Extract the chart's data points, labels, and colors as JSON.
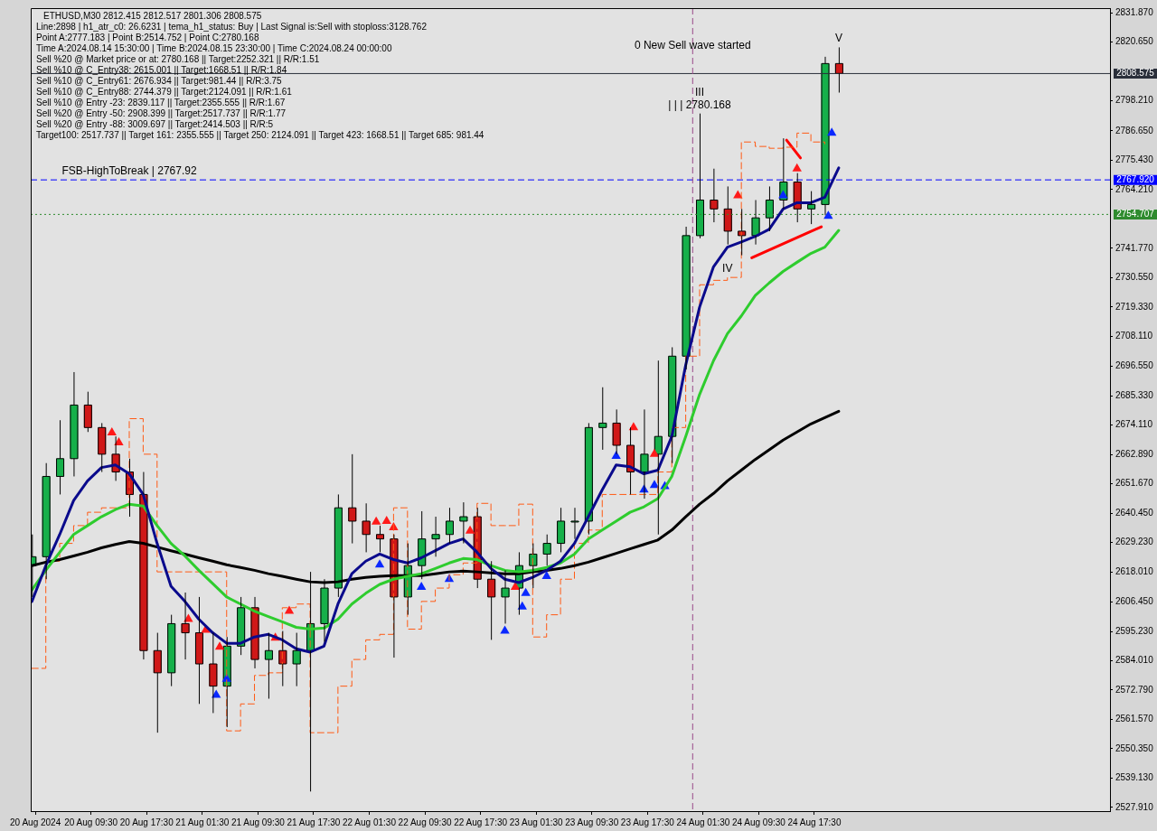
{
  "chart_data": {
    "type": "candlestick",
    "title": "ETHUSD,M30  2812.415 2812.517 2801.306 2808.575",
    "x": [
      "2024-08-20T01:00",
      "2024-08-20T03:00",
      "2024-08-20T05:00",
      "2024-08-20T07:00",
      "2024-08-20T09:00",
      "2024-08-20T11:00",
      "2024-08-20T13:00",
      "2024-08-20T15:00",
      "2024-08-20T17:00",
      "2024-08-20T19:00",
      "2024-08-20T21:00",
      "2024-08-20T23:00",
      "2024-08-21T01:00",
      "2024-08-21T03:00",
      "2024-08-21T05:00",
      "2024-08-21T07:00",
      "2024-08-21T09:00",
      "2024-08-21T11:00",
      "2024-08-21T13:00",
      "2024-08-21T15:00",
      "2024-08-21T17:00",
      "2024-08-21T19:00",
      "2024-08-21T21:00",
      "2024-08-21T23:00",
      "2024-08-22T01:00",
      "2024-08-22T03:00",
      "2024-08-22T05:00",
      "2024-08-22T07:00",
      "2024-08-22T09:00",
      "2024-08-22T11:00",
      "2024-08-22T13:00",
      "2024-08-22T15:00",
      "2024-08-22T17:00",
      "2024-08-22T19:00",
      "2024-08-22T21:00",
      "2024-08-22T23:00",
      "2024-08-23T01:00",
      "2024-08-23T03:00",
      "2024-08-23T05:00",
      "2024-08-23T07:00",
      "2024-08-23T09:00",
      "2024-08-23T11:00",
      "2024-08-23T13:00",
      "2024-08-23T15:00",
      "2024-08-23T17:00",
      "2024-08-23T19:00",
      "2024-08-23T21:00",
      "2024-08-23T23:00",
      "2024-08-24T01:00",
      "2024-08-24T03:00",
      "2024-08-24T05:00",
      "2024-08-24T07:00",
      "2024-08-24T09:00",
      "2024-08-24T11:00",
      "2024-08-24T13:00",
      "2024-08-24T15:00",
      "2024-08-24T17:00",
      "2024-08-24T19:00",
      "2024-08-24T21:00"
    ],
    "ohlc": [
      [
        2620.4,
        2632.3,
        2608.4,
        2623.8
      ],
      [
        2623.8,
        2659.6,
        2615.2,
        2654.5
      ],
      [
        2654.5,
        2676.0,
        2647.6,
        2661.3
      ],
      [
        2661.3,
        2694.4,
        2654.5,
        2681.8
      ],
      [
        2681.8,
        2686.9,
        2671.5,
        2673.2
      ],
      [
        2673.2,
        2674.9,
        2656.2,
        2663.0
      ],
      [
        2663.0,
        2669.8,
        2652.8,
        2656.2
      ],
      [
        2656.2,
        2661.3,
        2639.1,
        2647.6
      ],
      [
        2647.6,
        2656.2,
        2584.5,
        2587.9
      ],
      [
        2587.9,
        2594.7,
        2556.5,
        2579.4
      ],
      [
        2579.4,
        2601.6,
        2574.3,
        2598.2
      ],
      [
        2598.2,
        2610.1,
        2584.5,
        2594.7
      ],
      [
        2594.7,
        2608.4,
        2567.5,
        2582.8
      ],
      [
        2582.8,
        2594.7,
        2564.0,
        2574.3
      ],
      [
        2574.3,
        2593.1,
        2558.6,
        2589.6
      ],
      [
        2589.6,
        2608.4,
        2586.2,
        2604.3
      ],
      [
        2604.3,
        2608.4,
        2581.1,
        2584.5
      ],
      [
        2584.5,
        2594.7,
        2569.5,
        2587.9
      ],
      [
        2587.9,
        2595.4,
        2574.3,
        2582.8
      ],
      [
        2582.8,
        2594.7,
        2574.3,
        2587.9
      ],
      [
        2587.9,
        2618.0,
        2534.0,
        2598.2
      ],
      [
        2598.2,
        2615.2,
        2591.3,
        2611.8
      ],
      [
        2611.8,
        2647.6,
        2608.4,
        2642.5
      ],
      [
        2642.5,
        2663.0,
        2628.9,
        2637.4
      ],
      [
        2637.4,
        2644.2,
        2625.5,
        2632.3
      ],
      [
        2632.3,
        2635.7,
        2625.5,
        2630.6
      ],
      [
        2630.6,
        2632.3,
        2585.2,
        2608.4
      ],
      [
        2608.4,
        2628.9,
        2601.6,
        2620.4
      ],
      [
        2620.4,
        2641.2,
        2615.2,
        2630.6
      ],
      [
        2630.6,
        2639.1,
        2623.8,
        2632.3
      ],
      [
        2632.3,
        2642.5,
        2628.9,
        2637.4
      ],
      [
        2637.4,
        2644.6,
        2628.9,
        2639.1
      ],
      [
        2639.1,
        2642.5,
        2611.8,
        2615.2
      ],
      [
        2615.2,
        2622.1,
        2592.0,
        2608.4
      ],
      [
        2608.4,
        2618.6,
        2598.2,
        2611.8
      ],
      [
        2611.8,
        2625.5,
        2601.6,
        2620.4
      ],
      [
        2620.4,
        2628.9,
        2611.8,
        2624.8
      ],
      [
        2624.8,
        2632.3,
        2620.4,
        2628.9
      ],
      [
        2628.9,
        2642.5,
        2625.5,
        2637.4
      ],
      [
        2637.4,
        2642.5,
        2630.6,
        2637.4
      ],
      [
        2637.4,
        2674.9,
        2632.3,
        2673.2
      ],
      [
        2673.2,
        2688.6,
        2664.7,
        2674.9
      ],
      [
        2674.9,
        2680.1,
        2663.0,
        2666.4
      ],
      [
        2666.4,
        2673.2,
        2647.6,
        2656.2
      ],
      [
        2656.2,
        2680.1,
        2646.0,
        2663.0
      ],
      [
        2663.0,
        2698.8,
        2632.3,
        2669.8
      ],
      [
        2669.8,
        2703.9,
        2659.6,
        2700.5
      ],
      [
        2700.5,
        2750.0,
        2695.4,
        2746.6
      ],
      [
        2746.6,
        2793.3,
        2745.6,
        2760.2
      ],
      [
        2760.2,
        2772.2,
        2751.7,
        2756.8
      ],
      [
        2756.8,
        2765.4,
        2743.2,
        2748.3
      ],
      [
        2748.3,
        2756.8,
        2739.1,
        2746.6
      ],
      [
        2746.6,
        2760.2,
        2743.2,
        2753.4
      ],
      [
        2753.4,
        2765.4,
        2748.3,
        2760.2
      ],
      [
        2760.2,
        2783.8,
        2756.8,
        2767.1
      ],
      [
        2767.1,
        2770.5,
        2751.7,
        2756.8
      ],
      [
        2756.8,
        2763.6,
        2751.0,
        2758.5
      ],
      [
        2758.5,
        2815.0,
        2754.4,
        2812.4
      ],
      [
        2812.4,
        2818.6,
        2801.3,
        2808.6
      ]
    ],
    "series": [
      {
        "type": "line",
        "color": "#0a0a8c",
        "values": [
          2606.7,
          2620.4,
          2632.3,
          2645.3,
          2652.8,
          2657.9,
          2658.9,
          2655.5,
          2647.6,
          2628.9,
          2612.5,
          2606.7,
          2599.9,
          2594.7,
          2590.7,
          2590.7,
          2593.1,
          2594.1,
          2592.0,
          2588.6,
          2587.3,
          2589.6,
          2605.7,
          2617.3,
          2622.1,
          2624.8,
          2622.7,
          2621.4,
          2623.4,
          2626.1,
          2628.9,
          2630.6,
          2625.5,
          2619.3,
          2615.2,
          2613.9,
          2615.9,
          2618.6,
          2622.1,
          2628.9,
          2639.1,
          2649.4,
          2658.9,
          2658.2,
          2655.5,
          2656.9,
          2669.8,
          2697.1,
          2719.3,
          2734.7,
          2742.2,
          2744.2,
          2746.3,
          2749.0,
          2756.8,
          2759.2,
          2759.2,
          2761.3,
          2772.5
        ]
      },
      {
        "type": "line",
        "color": "#2ecc2e",
        "values": [
          2611.1,
          2618.6,
          2625.5,
          2632.3,
          2635.7,
          2639.1,
          2641.8,
          2643.9,
          2643.2,
          2635.7,
          2628.9,
          2624.1,
          2618.6,
          2613.5,
          2608.4,
          2605.7,
          2603.0,
          2600.9,
          2598.9,
          2596.8,
          2596.1,
          2596.5,
          2599.9,
          2605.7,
          2609.8,
          2613.2,
          2615.2,
          2616.3,
          2617.3,
          2619.3,
          2621.4,
          2623.1,
          2622.7,
          2620.4,
          2618.6,
          2618.0,
          2618.6,
          2619.7,
          2621.4,
          2624.8,
          2630.6,
          2634.0,
          2637.4,
          2640.8,
          2642.9,
          2646.0,
          2654.5,
          2669.8,
          2685.9,
          2698.8,
          2709.1,
          2715.9,
          2723.7,
          2728.5,
          2732.9,
          2736.4,
          2739.8,
          2742.2,
          2748.6
        ]
      },
      {
        "type": "line",
        "color": "#000000",
        "values": [
          2620.4,
          2621.7,
          2622.7,
          2624.1,
          2625.5,
          2627.2,
          2628.5,
          2629.6,
          2628.9,
          2627.5,
          2626.1,
          2624.8,
          2623.4,
          2622.1,
          2620.7,
          2619.7,
          2618.6,
          2617.3,
          2616.3,
          2615.2,
          2614.2,
          2613.9,
          2614.2,
          2615.2,
          2615.9,
          2616.3,
          2616.6,
          2616.6,
          2616.6,
          2617.3,
          2618.0,
          2618.3,
          2618.0,
          2617.6,
          2617.3,
          2617.3,
          2618.0,
          2618.6,
          2619.3,
          2620.4,
          2621.7,
          2623.4,
          2625.1,
          2626.8,
          2628.5,
          2630.2,
          2634.0,
          2639.1,
          2643.9,
          2648.0,
          2652.8,
          2656.9,
          2661.0,
          2664.7,
          2668.4,
          2671.5,
          2674.6,
          2677.0,
          2679.4
        ]
      },
      {
        "type": "step",
        "color": "#ff5a14",
        "line_style": "dashed",
        "values": [
          2581.1,
          2622.1,
          2628.9,
          2635.7,
          2640.8,
          2642.5,
          2642.5,
          2676.6,
          2663.0,
          2618.0,
          2618.0,
          2618.0,
          2618.0,
          2618.0,
          2557.2,
          2567.5,
          2578.4,
          2579.4,
          2604.3,
          2605.7,
          2556.5,
          2556.5,
          2574.3,
          2584.5,
          2592.0,
          2594.1,
          2642.5,
          2596.1,
          2606.7,
          2611.8,
          2616.9,
          2621.4,
          2644.2,
          2635.7,
          2635.7,
          2643.9,
          2593.1,
          2601.6,
          2615.2,
          2628.9,
          2634.0,
          2647.6,
          2647.6,
          2647.6,
          2647.6,
          2656.2,
          2673.2,
          2700.5,
          2727.8,
          2729.5,
          2730.6,
          2782.4,
          2780.7,
          2780.0,
          2780.4,
          2785.8,
          2782.4,
          2781.7,
          null
        ]
      },
      {
        "type": "line",
        "color": "#ff0000",
        "x": [
          "2024-08-24T08:30",
          "2024-08-24T18:30"
        ],
        "values": [
          2738.1,
          2750.0
        ]
      },
      {
        "type": "line",
        "color": "#ff0000",
        "x": [
          "2024-08-24T13:30",
          "2024-08-24T15:30"
        ],
        "values": [
          2783.1,
          2776.3
        ]
      },
      {
        "type": "scatter",
        "color": "#0a28ff",
        "marker": "triangle",
        "x": [
          "2024-08-21T03:30",
          "2024-08-21T05:00",
          "2024-08-22T03:00",
          "2024-08-22T09:00",
          "2024-08-22T13:00",
          "2024-08-22T21:00",
          "2024-08-22T23:30",
          "2024-08-23T00:00",
          "2024-08-23T03:00",
          "2024-08-23T13:00",
          "2024-08-23T17:00",
          "2024-08-23T18:30",
          "2024-08-23T20:00",
          "2024-08-24T13:00",
          "2024-08-24T19:30",
          "2024-08-24T20:00"
        ],
        "values": [
          2570.9,
          2577.0,
          2620.7,
          2612.2,
          2615.2,
          2595.4,
          2604.7,
          2609.8,
          2616.3,
          2662.3,
          2649.4,
          2651.1,
          2650.7,
          2761.9,
          2754.1,
          2785.8
        ]
      },
      {
        "type": "scatter",
        "color": "#ff1a1a",
        "marker": "triangle",
        "x": [
          "2024-08-20T12:30",
          "2024-08-20T13:30",
          "2024-08-20T23:30",
          "2024-08-21T02:00",
          "2024-08-21T04:00",
          "2024-08-21T12:00",
          "2024-08-21T14:00",
          "2024-08-22T02:30",
          "2024-08-22T04:00",
          "2024-08-22T05:00",
          "2024-08-22T16:00",
          "2024-08-22T22:30",
          "2024-08-23T15:30",
          "2024-08-23T18:30",
          "2024-08-24T06:30",
          "2024-08-24T15:00"
        ],
        "values": [
          2671.2,
          2667.4,
          2599.9,
          2595.8,
          2589.3,
          2592.7,
          2603.0,
          2637.1,
          2637.4,
          2635.0,
          2633.7,
          2612.2,
          2673.2,
          2663.0,
          2761.9,
          2772.2
        ]
      }
    ],
    "xlim": [
      "2024-08-20T00:50",
      "2024-08-26T12:00"
    ],
    "xticks": [
      {
        "value": "2024-08-20T01:30",
        "label": "20 Aug 2024"
      },
      {
        "value": "2024-08-20T09:30",
        "label": "20 Aug 09:30"
      },
      {
        "value": "2024-08-20T17:30",
        "label": "20 Aug 17:30"
      },
      {
        "value": "2024-08-21T01:30",
        "label": "21 Aug 01:30"
      },
      {
        "value": "2024-08-21T09:30",
        "label": "21 Aug 09:30"
      },
      {
        "value": "2024-08-21T17:30",
        "label": "21 Aug 17:30"
      },
      {
        "value": "2024-08-22T01:30",
        "label": "22 Aug 01:30"
      },
      {
        "value": "2024-08-22T09:30",
        "label": "22 Aug 09:30"
      },
      {
        "value": "2024-08-22T17:30",
        "label": "22 Aug 17:30"
      },
      {
        "value": "2024-08-23T01:30",
        "label": "23 Aug 01:30"
      },
      {
        "value": "2024-08-23T09:30",
        "label": "23 Aug 09:30"
      },
      {
        "value": "2024-08-23T17:30",
        "label": "23 Aug 17:30"
      },
      {
        "value": "2024-08-24T01:30",
        "label": "24 Aug 01:30"
      },
      {
        "value": "2024-08-24T09:30",
        "label": "24 Aug 09:30"
      },
      {
        "value": "2024-08-24T17:30",
        "label": "24 Aug 17:30"
      }
    ],
    "ylim": [
      2526.5,
      2833.6
    ],
    "yticks": [
      {
        "value": 2831.87,
        "label": "2831.870"
      },
      {
        "value": 2820.65,
        "label": "2820.650"
      },
      {
        "value": 2798.21,
        "label": "2798.210"
      },
      {
        "value": 2786.65,
        "label": "2786.650"
      },
      {
        "value": 2775.43,
        "label": "2775.430"
      },
      {
        "value": 2764.21,
        "label": "2764.210"
      },
      {
        "value": 2741.77,
        "label": "2741.770"
      },
      {
        "value": 2730.55,
        "label": "2730.550"
      },
      {
        "value": 2719.33,
        "label": "2719.330"
      },
      {
        "value": 2708.11,
        "label": "2708.110"
      },
      {
        "value": 2696.55,
        "label": "2696.550"
      },
      {
        "value": 2685.33,
        "label": "2685.330"
      },
      {
        "value": 2674.11,
        "label": "2674.110"
      },
      {
        "value": 2662.89,
        "label": "2662.890"
      },
      {
        "value": 2651.67,
        "label": "2651.670"
      },
      {
        "value": 2640.45,
        "label": "2640.450"
      },
      {
        "value": 2629.23,
        "label": "2629.230"
      },
      {
        "value": 2618.01,
        "label": "2618.010"
      },
      {
        "value": 2606.45,
        "label": "2606.450"
      },
      {
        "value": 2595.23,
        "label": "2595.230"
      },
      {
        "value": 2584.01,
        "label": "2584.010"
      },
      {
        "value": 2572.79,
        "label": "2572.790"
      },
      {
        "value": 2561.57,
        "label": "2561.570"
      },
      {
        "value": 2550.35,
        "label": "2550.350"
      },
      {
        "value": 2539.13,
        "label": "2539.130"
      },
      {
        "value": 2527.91,
        "label": "2527.910"
      }
    ],
    "ref_lines": [
      {
        "axis": "y",
        "value": 2808.575,
        "label": "2808.575",
        "color": "#2a2f3a",
        "line_style": "solid"
      },
      {
        "axis": "y",
        "value": 2767.92,
        "label": "2767.920",
        "color": "#0000ff",
        "line_style": "dashed"
      },
      {
        "axis": "y",
        "value": 2754.707,
        "label": "2754.707",
        "color": "#2e8b2e",
        "line_style": "dotted"
      },
      {
        "axis": "x",
        "value": "2024-08-24T00:00",
        "label": null,
        "color": "#9a4a8a",
        "line_style": "dashed"
      }
    ],
    "annotations": [
      "Line:2898 | h1_atr_c0: 26.6231 | tema_h1_status: Buy | Last Signal is:Sell with stoploss:3128.762",
      "Point A:2777.183 | Point B:2514.752 | Point C:2780.168",
      "Time A:2024.08.14 15:30:00 | Time B:2024.08.15 23:30:00 | Time C:2024.08.24 00:00:00",
      "Sell %20 @ Market price or at: 2780.168 || Target:2252.321 || R/R:1.51",
      "Sell %10 @ C_Entry38: 2615.001 || Target:1668.51 || R/R:1.84",
      "Sell %10 @ C_Entry61: 2676.934 || Target:981.44 || R/R:3.75",
      "Sell %10 @ C_Entry88: 2744.379 || Target:2124.091 || R/R:1.61",
      "Sell %10 @ Entry -23: 2839.117 || Target:2355.555 || R/R:1.67",
      "Sell %20 @ Entry -50: 2908.399 || Target:2517.737 || R/R:1.77",
      "Sell %20 @ Entry -88: 3009.697 || Target:2414.503 || R/R:5",
      "Target100: 2517.737 || Target 161: 2355.555 || Target 250: 2124.091 || Target 423: 1668.51 || Target 685: 981.44",
      {
        "text": "FSB-HighToBreak | 2767.92",
        "x": "2024-08-20T15:00",
        "y": 2767.92
      },
      {
        "text": "0 New Sell wave started",
        "x": "2024-08-24T00:00",
        "y": 2816
      },
      {
        "text": "| | | 2780.168",
        "x": "2024-08-24T01:00",
        "y": 2793.3
      },
      {
        "text": "III",
        "x": "2024-08-24T01:00",
        "y": 2793.3
      },
      {
        "text": "IV",
        "x": "2024-08-24T05:00",
        "y": 2730.6
      },
      {
        "text": "V",
        "x": "2024-08-24T21:00",
        "y": 2818.6
      }
    ],
    "grid": false,
    "legend": false
  }
}
